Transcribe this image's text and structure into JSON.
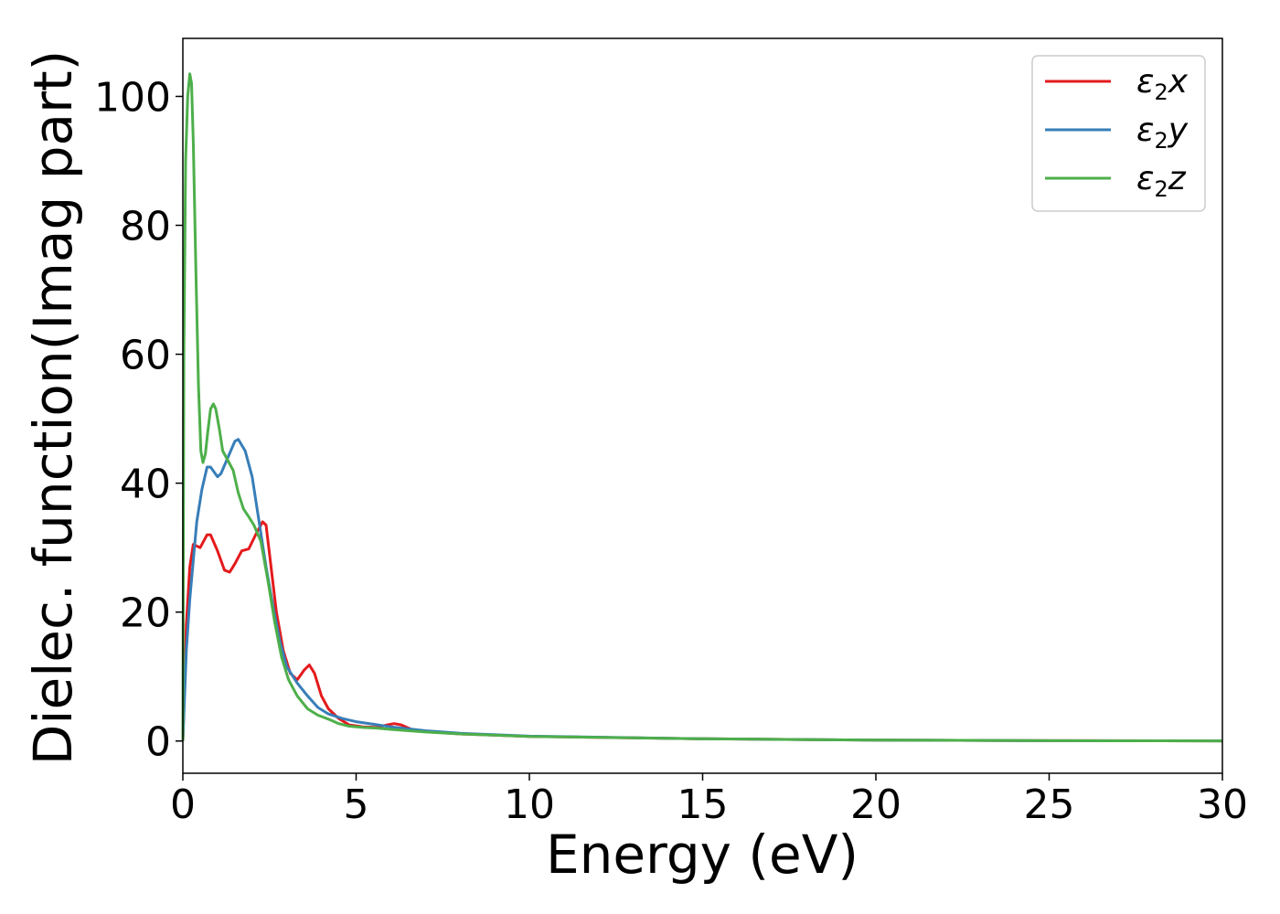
{
  "chart_data": {
    "type": "line",
    "title": "",
    "xlabel": "Energy (eV)",
    "ylabel": "Dielec. function(Imag part)",
    "xlim": [
      0,
      30
    ],
    "ylim": [
      -5,
      109
    ],
    "xticks": [
      0,
      5,
      10,
      15,
      20,
      25,
      30
    ],
    "yticks": [
      0,
      20,
      40,
      60,
      80,
      100
    ],
    "xtick_labels": [
      "0",
      "5",
      "10",
      "15",
      "20",
      "25",
      "30"
    ],
    "ytick_labels": [
      "0",
      "20",
      "40",
      "60",
      "80",
      "100"
    ],
    "grid": false,
    "legend_position": "top-right",
    "series": [
      {
        "name": "ε2x",
        "legend_base": "ε",
        "legend_sub": "2",
        "legend_var": "x",
        "color": "#e41a1c",
        "points": [
          [
            0,
            0
          ],
          [
            0.1,
            18
          ],
          [
            0.2,
            27
          ],
          [
            0.3,
            30.5
          ],
          [
            0.5,
            30
          ],
          [
            0.7,
            32
          ],
          [
            0.8,
            32
          ],
          [
            1.0,
            29.5
          ],
          [
            1.2,
            26.5
          ],
          [
            1.35,
            26.2
          ],
          [
            1.5,
            27.5
          ],
          [
            1.7,
            29.5
          ],
          [
            1.9,
            29.8
          ],
          [
            2.1,
            32
          ],
          [
            2.3,
            34
          ],
          [
            2.4,
            33.5
          ],
          [
            2.5,
            29
          ],
          [
            2.7,
            20
          ],
          [
            2.9,
            14
          ],
          [
            3.1,
            10.5
          ],
          [
            3.3,
            9.5
          ],
          [
            3.5,
            11
          ],
          [
            3.65,
            11.8
          ],
          [
            3.8,
            10.5
          ],
          [
            4.0,
            7
          ],
          [
            4.2,
            5
          ],
          [
            4.5,
            3.5
          ],
          [
            4.8,
            2.5
          ],
          [
            5.2,
            2.2
          ],
          [
            5.6,
            2.1
          ],
          [
            5.9,
            2.5
          ],
          [
            6.1,
            2.7
          ],
          [
            6.3,
            2.5
          ],
          [
            6.6,
            1.8
          ],
          [
            7,
            1.5
          ],
          [
            8,
            1.1
          ],
          [
            10,
            0.7
          ],
          [
            15,
            0.35
          ],
          [
            20,
            0.15
          ],
          [
            25,
            0.05
          ],
          [
            30,
            0.02
          ]
        ]
      },
      {
        "name": "ε2y",
        "legend_base": "ε",
        "legend_sub": "2",
        "legend_var": "y",
        "color": "#377eb8",
        "points": [
          [
            0,
            0
          ],
          [
            0.1,
            14
          ],
          [
            0.2,
            22
          ],
          [
            0.3,
            28
          ],
          [
            0.4,
            34
          ],
          [
            0.55,
            39
          ],
          [
            0.7,
            42.5
          ],
          [
            0.8,
            42.5
          ],
          [
            1.0,
            41
          ],
          [
            1.1,
            41.5
          ],
          [
            1.3,
            44
          ],
          [
            1.5,
            46.5
          ],
          [
            1.6,
            46.8
          ],
          [
            1.8,
            45
          ],
          [
            2.0,
            41
          ],
          [
            2.2,
            34
          ],
          [
            2.4,
            27
          ],
          [
            2.6,
            21
          ],
          [
            2.8,
            15.5
          ],
          [
            3.0,
            11.5
          ],
          [
            3.3,
            9
          ],
          [
            3.6,
            7
          ],
          [
            3.9,
            5.2
          ],
          [
            4.2,
            4.2
          ],
          [
            4.6,
            3.5
          ],
          [
            5.0,
            3
          ],
          [
            5.5,
            2.6
          ],
          [
            6,
            2.2
          ],
          [
            7,
            1.6
          ],
          [
            8,
            1.2
          ],
          [
            10,
            0.75
          ],
          [
            15,
            0.35
          ],
          [
            20,
            0.15
          ],
          [
            25,
            0.05
          ],
          [
            30,
            0.02
          ]
        ]
      },
      {
        "name": "ε2z",
        "legend_base": "ε",
        "legend_sub": "2",
        "legend_var": "z",
        "color": "#4daf4a",
        "points": [
          [
            0,
            0
          ],
          [
            0.03,
            60
          ],
          [
            0.08,
            90
          ],
          [
            0.14,
            100
          ],
          [
            0.2,
            103.5
          ],
          [
            0.25,
            102
          ],
          [
            0.3,
            93
          ],
          [
            0.38,
            72
          ],
          [
            0.45,
            55
          ],
          [
            0.52,
            45
          ],
          [
            0.58,
            43.2
          ],
          [
            0.65,
            44.5
          ],
          [
            0.72,
            48
          ],
          [
            0.8,
            51.5
          ],
          [
            0.88,
            52.3
          ],
          [
            0.95,
            51.5
          ],
          [
            1.05,
            48.5
          ],
          [
            1.15,
            45
          ],
          [
            1.3,
            43.5
          ],
          [
            1.45,
            42
          ],
          [
            1.6,
            38.5
          ],
          [
            1.75,
            36
          ],
          [
            1.9,
            34.8
          ],
          [
            2.05,
            33.5
          ],
          [
            2.25,
            31
          ],
          [
            2.45,
            25
          ],
          [
            2.65,
            18.5
          ],
          [
            2.85,
            13
          ],
          [
            3.05,
            9.5
          ],
          [
            3.3,
            7
          ],
          [
            3.6,
            5
          ],
          [
            3.9,
            4
          ],
          [
            4.2,
            3.4
          ],
          [
            4.5,
            2.7
          ],
          [
            4.8,
            2.3
          ],
          [
            5.2,
            2.1
          ],
          [
            5.6,
            2.0
          ],
          [
            6,
            1.8
          ],
          [
            7,
            1.4
          ],
          [
            8,
            1.1
          ],
          [
            10,
            0.7
          ],
          [
            15,
            0.35
          ],
          [
            20,
            0.15
          ],
          [
            25,
            0.05
          ],
          [
            30,
            0.02
          ]
        ]
      }
    ]
  }
}
